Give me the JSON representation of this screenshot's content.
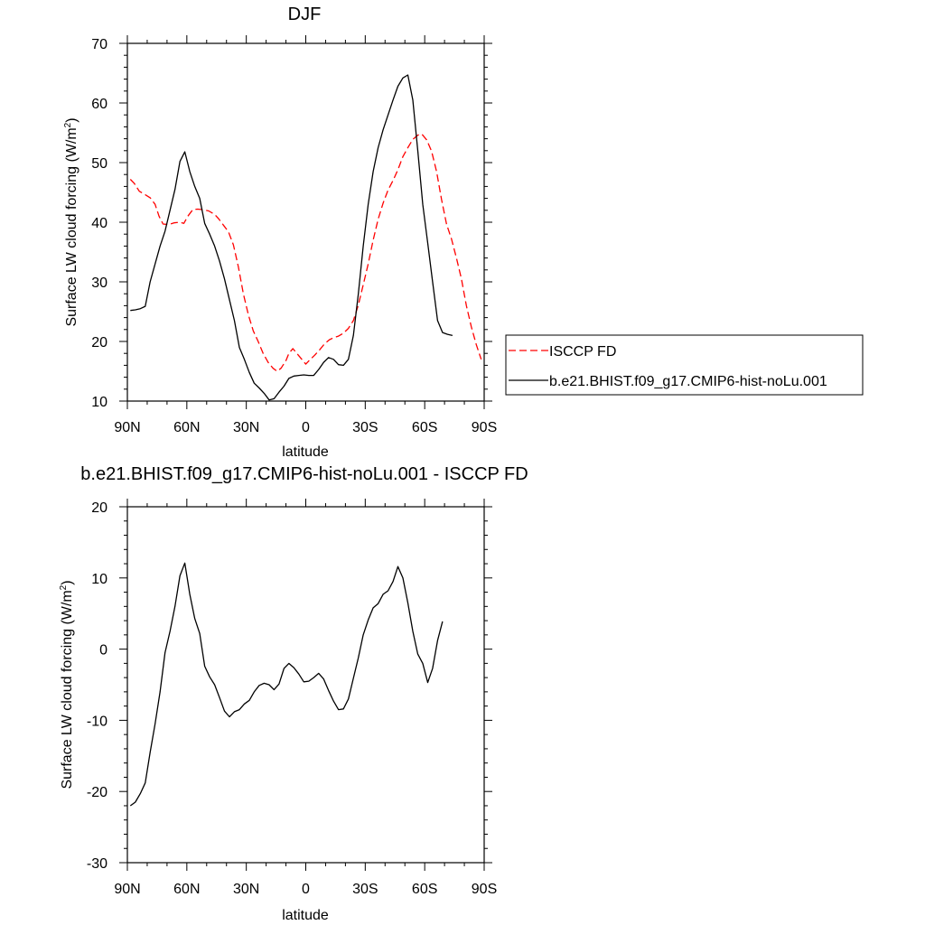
{
  "chart_data": [
    {
      "type": "line",
      "title": "DJF",
      "xlabel": "latitude",
      "ylabel": "Surface LW cloud forcing (W/m",
      "ylabel_sup": "2",
      "ylabel_end": ")",
      "xlim": [
        90,
        -90
      ],
      "ylim": [
        10,
        70
      ],
      "x_ticks": [
        90,
        60,
        30,
        0,
        -30,
        -60,
        -90
      ],
      "x_tick_labels": [
        "90N",
        "60N",
        "30N",
        "0",
        "30S",
        "60S",
        "90S"
      ],
      "y_ticks": [
        10,
        20,
        30,
        40,
        50,
        60,
        70
      ],
      "y_tick_labels": [
        "10",
        "20",
        "30",
        "40",
        "50",
        "60",
        "70"
      ],
      "legend_position": "right",
      "series": [
        {
          "name": "ISCCP FD",
          "style": "dashed",
          "color": "#ff0000",
          "points": [
            [
              88.5,
              47.2
            ],
            [
              86.5,
              46.5
            ],
            [
              84,
              45.2
            ],
            [
              81,
              44.6
            ],
            [
              78.5,
              44.1
            ],
            [
              76,
              43
            ],
            [
              74,
              41
            ],
            [
              72,
              39.7
            ],
            [
              69,
              39.6
            ],
            [
              66.5,
              39.9
            ],
            [
              63.5,
              40
            ],
            [
              61.5,
              39.8
            ],
            [
              59.5,
              41
            ],
            [
              57,
              42.1
            ],
            [
              54.5,
              42.2
            ],
            [
              52,
              42.1
            ],
            [
              49,
              41.9
            ],
            [
              46,
              41.3
            ],
            [
              44,
              40.6
            ],
            [
              41.5,
              39.5
            ],
            [
              39,
              38.4
            ],
            [
              36.5,
              36.2
            ],
            [
              34,
              32.5
            ],
            [
              31.5,
              28
            ],
            [
              29,
              24.5
            ],
            [
              26.5,
              21.8
            ],
            [
              24,
              20
            ],
            [
              21.5,
              18
            ],
            [
              19,
              16.5
            ],
            [
              16.5,
              15.5
            ],
            [
              14.5,
              15
            ],
            [
              12.5,
              15.5
            ],
            [
              10,
              16.8
            ],
            [
              8.5,
              18
            ],
            [
              6.5,
              18.8
            ],
            [
              4.5,
              18
            ],
            [
              2,
              17
            ],
            [
              0,
              16.2
            ],
            [
              -2,
              16.9
            ],
            [
              -4.5,
              17.7
            ],
            [
              -7,
              18.6
            ],
            [
              -9.5,
              19.6
            ],
            [
              -12,
              20.3
            ],
            [
              -14.5,
              20.7
            ],
            [
              -16.5,
              20.9
            ],
            [
              -19,
              21.4
            ],
            [
              -21.5,
              22.2
            ],
            [
              -24,
              23.5
            ],
            [
              -26.5,
              26.1
            ],
            [
              -29,
              29.5
            ],
            [
              -31.5,
              33
            ],
            [
              -34,
              37
            ],
            [
              -36.5,
              40.5
            ],
            [
              -39,
              43.2
            ],
            [
              -41.5,
              45.4
            ],
            [
              -44,
              47
            ],
            [
              -46.5,
              48.8
            ],
            [
              -49,
              51
            ],
            [
              -51.5,
              52.5
            ],
            [
              -54,
              53.9
            ],
            [
              -56.5,
              54.6
            ],
            [
              -58.5,
              54.8
            ],
            [
              -61,
              53.8
            ],
            [
              -63.5,
              51.9
            ],
            [
              -66,
              48.5
            ],
            [
              -68.5,
              43.8
            ],
            [
              -71,
              39.7
            ],
            [
              -73.5,
              37.2
            ],
            [
              -76,
              34
            ],
            [
              -78.5,
              30.5
            ],
            [
              -81,
              26
            ],
            [
              -83.5,
              22.5
            ],
            [
              -86,
              19.5
            ],
            [
              -88.5,
              17
            ]
          ]
        },
        {
          "name": "b.e21.BHIST.f09_g17.CMIP6-hist-noLu.001",
          "style": "solid",
          "color": "#000000",
          "points": [
            [
              88.5,
              25.2
            ],
            [
              86,
              25.3
            ],
            [
              83.5,
              25.5
            ],
            [
              81,
              25.9
            ],
            [
              78.5,
              30
            ],
            [
              76,
              33
            ],
            [
              73.5,
              36
            ],
            [
              71,
              38.5
            ],
            [
              68.5,
              42
            ],
            [
              66,
              45.5
            ],
            [
              63.5,
              50.2
            ],
            [
              61,
              51.8
            ],
            [
              58.5,
              48.5
            ],
            [
              56,
              46
            ],
            [
              53.5,
              44
            ],
            [
              51,
              39.8
            ],
            [
              48.5,
              38
            ],
            [
              46,
              36
            ],
            [
              43.5,
              33.5
            ],
            [
              41,
              30.5
            ],
            [
              38.5,
              27
            ],
            [
              36,
              23.5
            ],
            [
              33.5,
              19
            ],
            [
              31,
              17
            ],
            [
              28.5,
              14.8
            ],
            [
              26,
              13
            ],
            [
              23.5,
              12.2
            ],
            [
              21,
              11.3
            ],
            [
              18.5,
              10.2
            ],
            [
              16,
              10.4
            ],
            [
              13.5,
              11.5
            ],
            [
              11,
              12.5
            ],
            [
              8.5,
              13.8
            ],
            [
              6,
              14.2
            ],
            [
              3.5,
              14.3
            ],
            [
              1,
              14.4
            ],
            [
              -1.5,
              14.3
            ],
            [
              -4,
              14.3
            ],
            [
              -6.5,
              15.3
            ],
            [
              -9,
              16.5
            ],
            [
              -11.5,
              17.3
            ],
            [
              -14,
              17
            ],
            [
              -16.5,
              16.1
            ],
            [
              -19,
              16
            ],
            [
              -21.5,
              17
            ],
            [
              -24,
              21
            ],
            [
              -26.5,
              28
            ],
            [
              -29,
              36
            ],
            [
              -31.5,
              43
            ],
            [
              -34,
              48.5
            ],
            [
              -36.5,
              52.5
            ],
            [
              -39,
              55.5
            ],
            [
              -41.5,
              58
            ],
            [
              -44,
              60.5
            ],
            [
              -46.5,
              62.8
            ],
            [
              -49,
              64.2
            ],
            [
              -51.5,
              64.7
            ],
            [
              -54,
              60.5
            ],
            [
              -56.5,
              52
            ],
            [
              -59,
              43
            ],
            [
              -61.5,
              36.5
            ],
            [
              -64,
              30
            ],
            [
              -66.5,
              23.5
            ],
            [
              -69,
              21.5
            ],
            [
              -71.5,
              21.2
            ],
            [
              -74,
              21
            ]
          ]
        }
      ]
    },
    {
      "type": "line",
      "title": "b.e21.BHIST.f09_g17.CMIP6-hist-noLu.001 - ISCCP FD",
      "xlabel": "latitude",
      "ylabel": "Surface LW cloud forcing (W/m",
      "ylabel_sup": "2",
      "ylabel_end": ")",
      "xlim": [
        90,
        -90
      ],
      "ylim": [
        -30,
        20
      ],
      "x_ticks": [
        90,
        60,
        30,
        0,
        -30,
        -60,
        -90
      ],
      "x_tick_labels": [
        "90N",
        "60N",
        "30N",
        "0",
        "30S",
        "60S",
        "90S"
      ],
      "y_ticks": [
        -30,
        -20,
        -10,
        0,
        10,
        20
      ],
      "y_tick_labels": [
        "-30",
        "-20",
        "-10",
        "0",
        "10",
        "20"
      ],
      "series": [
        {
          "style": "solid",
          "color": "#000000",
          "points": [
            [
              88.5,
              -22
            ],
            [
              86,
              -21.5
            ],
            [
              83.5,
              -20.3
            ],
            [
              81,
              -18.8
            ],
            [
              78.5,
              -14.5
            ],
            [
              76,
              -10.5
            ],
            [
              73.5,
              -6
            ],
            [
              71,
              -0.5
            ],
            [
              68.5,
              2.5
            ],
            [
              66,
              6
            ],
            [
              63.5,
              10.3
            ],
            [
              61,
              12.1
            ],
            [
              58.5,
              7.7
            ],
            [
              56,
              4.3
            ],
            [
              53.5,
              2.2
            ],
            [
              51,
              -2.4
            ],
            [
              48.5,
              -3.9
            ],
            [
              46,
              -5
            ],
            [
              43.5,
              -6.8
            ],
            [
              41,
              -8.7
            ],
            [
              38.5,
              -9.5
            ],
            [
              36,
              -8.8
            ],
            [
              33.5,
              -8.5
            ],
            [
              31,
              -7.7
            ],
            [
              28.5,
              -7.2
            ],
            [
              26,
              -6
            ],
            [
              23.5,
              -5.1
            ],
            [
              21,
              -4.8
            ],
            [
              18.5,
              -5
            ],
            [
              16,
              -5.7
            ],
            [
              13.5,
              -4.9
            ],
            [
              11,
              -2.7
            ],
            [
              8.5,
              -2
            ],
            [
              6,
              -2.6
            ],
            [
              3.5,
              -3.5
            ],
            [
              1,
              -4.6
            ],
            [
              -1.5,
              -4.5
            ],
            [
              -4,
              -4
            ],
            [
              -6.5,
              -3.4
            ],
            [
              -9,
              -4.2
            ],
            [
              -11.5,
              -5.8
            ],
            [
              -14,
              -7.3
            ],
            [
              -16.5,
              -8.5
            ],
            [
              -19,
              -8.4
            ],
            [
              -21.5,
              -7
            ],
            [
              -24,
              -4.1
            ],
            [
              -26.5,
              -1.2
            ],
            [
              -29,
              2
            ],
            [
              -31.5,
              4.1
            ],
            [
              -34,
              5.8
            ],
            [
              -36.5,
              6.4
            ],
            [
              -39,
              7.7
            ],
            [
              -41.5,
              8.2
            ],
            [
              -44,
              9.5
            ],
            [
              -46.5,
              11.6
            ],
            [
              -49,
              10
            ],
            [
              -51.5,
              6.5
            ],
            [
              -54,
              2.5
            ],
            [
              -56.5,
              -0.7
            ],
            [
              -59,
              -2
            ],
            [
              -61.5,
              -4.7
            ],
            [
              -64,
              -2.7
            ],
            [
              -66.5,
              1.2
            ],
            [
              -69,
              3.9
            ]
          ]
        }
      ]
    }
  ]
}
